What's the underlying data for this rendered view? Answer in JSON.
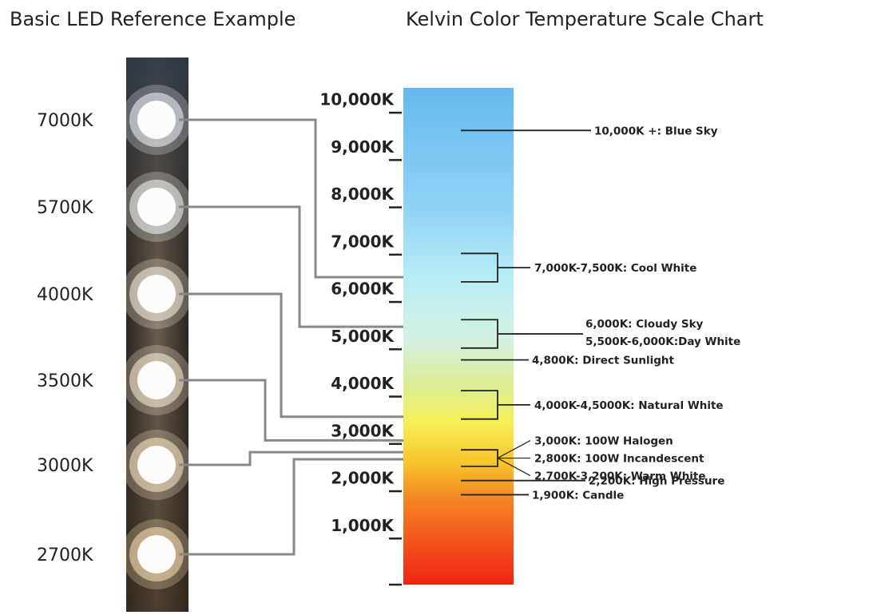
{
  "titles": {
    "led": "Basic LED Reference Example",
    "scale": "Kelvin Color Temperature Scale Chart"
  },
  "leds": [
    {
      "label": "7000K",
      "kelvin": 7000,
      "points_to": 6500,
      "color": "#f4f8ff"
    },
    {
      "label": "5700K",
      "kelvin": 5700,
      "points_to": 5450,
      "color": "#fbfbf7"
    },
    {
      "label": "4000K",
      "kelvin": 4000,
      "points_to": 3550,
      "color": "#fff6e4"
    },
    {
      "label": "3500K",
      "kelvin": 3500,
      "points_to": 3050,
      "color": "#fff1d8"
    },
    {
      "label": "3000K",
      "kelvin": 3000,
      "points_to": 2800,
      "color": "#ffedcc"
    },
    {
      "label": "2700K",
      "kelvin": 2700,
      "points_to": 2650,
      "color": "#ffe6ba"
    }
  ],
  "scale": {
    "min": 0,
    "max": 10000,
    "ticks": [
      {
        "value": 10000,
        "label": "10,000K"
      },
      {
        "value": 9000,
        "label": "9,000K"
      },
      {
        "value": 8000,
        "label": "8,000K"
      },
      {
        "value": 7000,
        "label": "7,000K"
      },
      {
        "value": 6000,
        "label": "6,000K"
      },
      {
        "value": 5000,
        "label": "5,000K"
      },
      {
        "value": 4000,
        "label": "4,000K"
      },
      {
        "value": 3000,
        "label": "3,000K"
      },
      {
        "value": 2000,
        "label": "2,000K"
      },
      {
        "value": 1000,
        "label": "1,000K"
      }
    ],
    "gradient": [
      {
        "kelvin": 10500,
        "color": "#66b9ee"
      },
      {
        "kelvin": 8000,
        "color": "#8fd2f5"
      },
      {
        "kelvin": 6500,
        "color": "#b6ecf6"
      },
      {
        "kelvin": 5200,
        "color": "#d4f2e4"
      },
      {
        "kelvin": 4400,
        "color": "#d8eda2"
      },
      {
        "kelvin": 3400,
        "color": "#f5ee55"
      },
      {
        "kelvin": 2600,
        "color": "#f8c62c"
      },
      {
        "kelvin": 1800,
        "color": "#f58423"
      },
      {
        "kelvin": 0,
        "color": "#ef2412"
      }
    ]
  },
  "annotations": [
    {
      "type": "single",
      "kelvin": 9600,
      "lines": [
        "10,000K +: Blue Sky"
      ]
    },
    {
      "type": "range",
      "from": 7000,
      "to": 6400,
      "lines": [
        "7,000K-7,500K: Cool White"
      ]
    },
    {
      "type": "range",
      "from": 5600,
      "to": 5000,
      "lines": [
        "6,000K: Cloudy Sky",
        "5,500K-6,000K:Day White"
      ]
    },
    {
      "type": "single",
      "kelvin": 4750,
      "lines": [
        "4,800K: Direct Sunlight"
      ]
    },
    {
      "type": "range",
      "from": 4100,
      "to": 3500,
      "lines": [
        "4,000K-4,5000K: Natural White"
      ]
    },
    {
      "type": "range",
      "from": 2850,
      "to": 2500,
      "lines": [
        "3,000K: 100W Halogen",
        "2,800K: 100W Incandescent",
        "2,700K-3,200K: Warm White"
      ]
    },
    {
      "type": "single",
      "kelvin": 2200,
      "lines": [
        "2,200K: High Pressure"
      ]
    },
    {
      "type": "single",
      "kelvin": 1900,
      "lines": [
        "1,900K: Candle"
      ]
    }
  ]
}
